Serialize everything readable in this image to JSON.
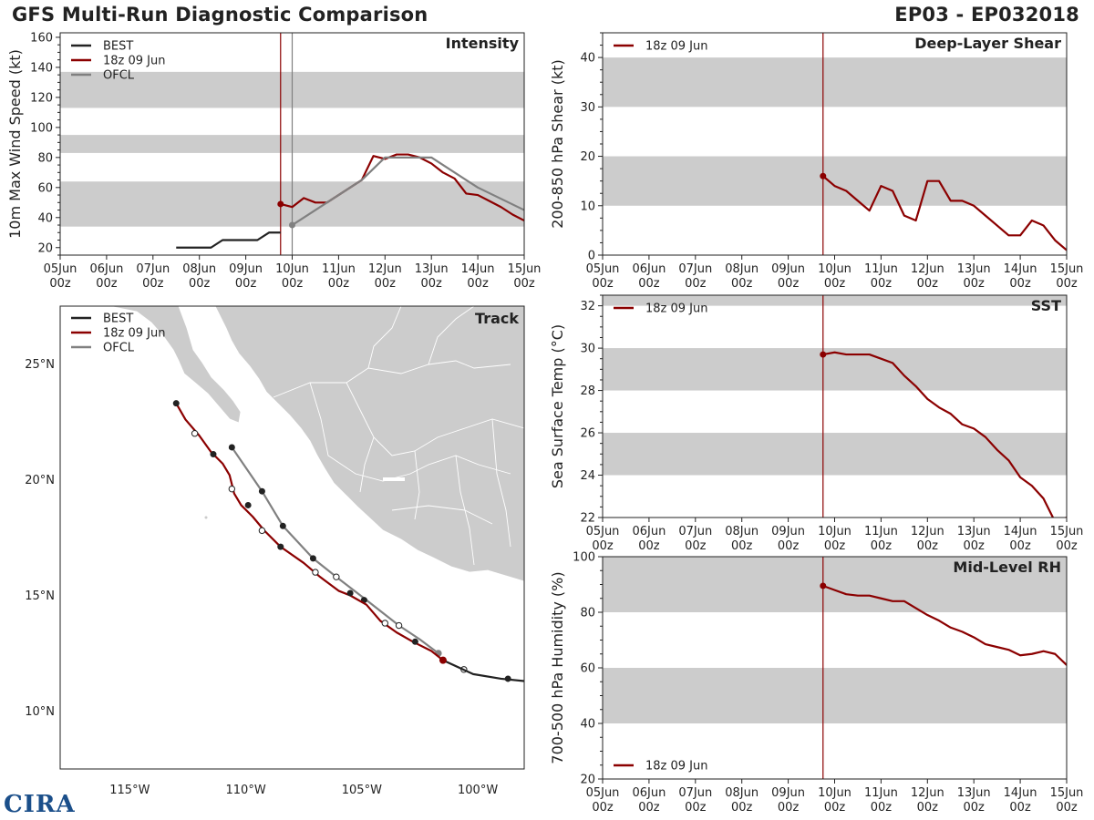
{
  "header": {
    "title": "GFS Multi-Run Diagnostic Comparison",
    "storm_id": "EP03 - EP032018"
  },
  "logo": {
    "text": "CIRA"
  },
  "colors": {
    "best": "#222222",
    "run": "#8b0000",
    "ofcl": "#808080",
    "band": "#cccccc",
    "land": "#cccccc",
    "vline_ofcl": "#7f7f7f"
  },
  "x_ticks": {
    "values": [
      0,
      1,
      2,
      3,
      4,
      5,
      6,
      7,
      8,
      9,
      10
    ],
    "day_labels": [
      "05Jun",
      "06Jun",
      "07Jun",
      "08Jun",
      "09Jun",
      "10Jun",
      "11Jun",
      "12Jun",
      "13Jun",
      "14Jun",
      "15Jun"
    ],
    "hour_label": "00z"
  },
  "chart_data": [
    {
      "id": "intensity",
      "type": "line",
      "title": "Intensity",
      "ylabel": "10m Max Wind Speed (kt)",
      "xlim": [
        0,
        10
      ],
      "ylim": [
        15,
        163
      ],
      "yticks": [
        20,
        40,
        60,
        80,
        100,
        120,
        140,
        160
      ],
      "bands": [
        [
          34,
          64
        ],
        [
          83,
          95
        ],
        [
          113,
          137
        ]
      ],
      "vlines": [
        {
          "x": 4.75,
          "color": "run"
        },
        {
          "x": 5.0,
          "color": "vline_ofcl"
        }
      ],
      "legend": [
        "BEST",
        "18z 09 Jun",
        "OFCL"
      ],
      "series": [
        {
          "name": "BEST",
          "color": "best",
          "x": [
            2.5,
            2.75,
            3.0,
            3.25,
            3.5,
            3.75,
            4.0,
            4.25,
            4.5,
            4.75
          ],
          "y": [
            20,
            20,
            20,
            20,
            25,
            25,
            25,
            25,
            30,
            30
          ]
        },
        {
          "name": "18z 09 Jun",
          "color": "run",
          "marker_first": true,
          "x": [
            4.75,
            5.0,
            5.25,
            5.5,
            5.75,
            6.0,
            6.25,
            6.5,
            6.75,
            7.0,
            7.25,
            7.5,
            7.75,
            8.0,
            8.25,
            8.5,
            8.75,
            9.0,
            9.25,
            9.5,
            9.75,
            10.0
          ],
          "y": [
            49,
            47,
            53,
            50,
            50,
            55,
            60,
            65,
            81,
            79,
            82,
            82,
            80,
            76,
            70,
            66,
            56,
            55,
            51,
            47,
            42,
            38
          ]
        },
        {
          "name": "OFCL",
          "color": "ofcl",
          "marker_first": true,
          "x": [
            5.0,
            5.5,
            6.0,
            6.5,
            7.0,
            7.5,
            8.0,
            9.0,
            10.0
          ],
          "y": [
            35,
            45,
            55,
            65,
            80,
            80,
            80,
            60,
            45
          ]
        }
      ]
    },
    {
      "id": "shear",
      "type": "line",
      "title": "Deep-Layer Shear",
      "ylabel": "200-850 hPa Shear (kt)",
      "xlim": [
        0,
        10
      ],
      "ylim": [
        0,
        45
      ],
      "yticks": [
        0,
        10,
        20,
        30,
        40
      ],
      "bands": [
        [
          10,
          20
        ],
        [
          30,
          40
        ]
      ],
      "vlines": [
        {
          "x": 4.75,
          "color": "run"
        }
      ],
      "legend": [
        "18z 09 Jun"
      ],
      "series": [
        {
          "name": "18z 09 Jun",
          "color": "run",
          "marker_first": true,
          "x": [
            4.75,
            5.0,
            5.25,
            5.5,
            5.75,
            6.0,
            6.25,
            6.5,
            6.75,
            7.0,
            7.25,
            7.5,
            7.75,
            8.0,
            8.25,
            8.5,
            8.75,
            9.0,
            9.25,
            9.5,
            9.75,
            10.0
          ],
          "y": [
            16,
            14,
            13,
            11,
            9,
            14,
            13,
            8,
            7,
            15,
            15,
            11,
            11,
            10,
            8,
            6,
            4,
            4,
            7,
            6,
            3,
            1
          ]
        }
      ]
    },
    {
      "id": "sst",
      "type": "line",
      "title": "SST",
      "ylabel": "Sea Surface Temp (°C)",
      "xlim": [
        0,
        10
      ],
      "ylim": [
        22,
        32.5
      ],
      "yticks": [
        22,
        24,
        26,
        28,
        30,
        32
      ],
      "bands": [
        [
          24,
          26
        ],
        [
          28,
          30
        ],
        [
          32,
          32.5
        ]
      ],
      "vlines": [
        {
          "x": 4.75,
          "color": "run"
        }
      ],
      "legend": [
        "18z 09 Jun"
      ],
      "series": [
        {
          "name": "18z 09 Jun",
          "color": "run",
          "marker_first": true,
          "x": [
            4.75,
            5.0,
            5.25,
            5.5,
            5.75,
            6.0,
            6.25,
            6.5,
            6.75,
            7.0,
            7.25,
            7.5,
            7.75,
            8.0,
            8.25,
            8.5,
            8.75,
            9.0,
            9.25,
            9.5,
            9.75,
            10.0
          ],
          "y": [
            29.7,
            29.8,
            29.7,
            29.7,
            29.7,
            29.5,
            29.3,
            28.7,
            28.2,
            27.6,
            27.2,
            26.9,
            26.4,
            26.2,
            25.8,
            25.2,
            24.7,
            23.9,
            23.5,
            22.9,
            21.8,
            22.0
          ]
        }
      ]
    },
    {
      "id": "rh",
      "type": "line",
      "title": "Mid-Level RH",
      "ylabel": "700-500 hPa Humidity (%)",
      "xlim": [
        0,
        10
      ],
      "ylim": [
        20,
        100
      ],
      "yticks": [
        20,
        40,
        60,
        80,
        100
      ],
      "bands": [
        [
          40,
          60
        ],
        [
          80,
          100
        ]
      ],
      "vlines": [
        {
          "x": 4.75,
          "color": "run"
        }
      ],
      "legend": [
        "18z 09 Jun"
      ],
      "legend_position": "bottom-left",
      "series": [
        {
          "name": "18z 09 Jun",
          "color": "run",
          "marker_first": true,
          "x": [
            4.75,
            5.0,
            5.25,
            5.5,
            5.75,
            6.0,
            6.25,
            6.5,
            6.75,
            7.0,
            7.25,
            7.5,
            7.75,
            8.0,
            8.25,
            8.5,
            8.75,
            9.0,
            9.25,
            9.5,
            9.75,
            10.0
          ],
          "y": [
            89.5,
            88,
            86.5,
            86,
            86,
            85,
            84,
            84,
            81.5,
            79,
            77,
            74.5,
            73,
            71,
            68.5,
            67.5,
            66.5,
            64.5,
            65,
            66,
            65,
            61
          ]
        }
      ]
    },
    {
      "id": "track",
      "type": "scatter",
      "title": "Track",
      "xlim": [
        -118,
        -98
      ],
      "ylim": [
        7.5,
        27.5
      ],
      "xticks": [
        -115,
        -110,
        -105,
        -100
      ],
      "xtick_labels": [
        "115°W",
        "110°W",
        "105°W",
        "100°W"
      ],
      "yticks": [
        10,
        15,
        20,
        25
      ],
      "ytick_labels": [
        "10°N",
        "15°N",
        "20°N",
        "25°N"
      ],
      "legend": [
        "BEST",
        "18z 09 Jun",
        "OFCL"
      ],
      "series": [
        {
          "name": "BEST",
          "color": "best",
          "lon": [
            -98.0,
            -99.0,
            -100.2,
            -101.5
          ],
          "lat": [
            11.3,
            11.4,
            11.6,
            12.2
          ],
          "dots": [
            [
              -98.7,
              11.4
            ]
          ]
        },
        {
          "name": "18z 09 Jun",
          "color": "run",
          "lon": [
            -101.5,
            -102.0,
            -102.8,
            -103.5,
            -104.2,
            -104.8,
            -105.5,
            -106.0,
            -106.8,
            -107.5,
            -108.5,
            -109.2,
            -109.7,
            -110.2,
            -110.5,
            -110.7,
            -111.0,
            -111.5,
            -112.0,
            -112.6,
            -113.0
          ],
          "lat": [
            12.2,
            12.6,
            13.0,
            13.4,
            13.9,
            14.6,
            15.0,
            15.2,
            15.8,
            16.4,
            17.1,
            17.8,
            18.4,
            18.9,
            19.4,
            20.2,
            20.7,
            21.2,
            21.9,
            22.6,
            23.3
          ],
          "filled": [
            [
              -113.0,
              23.3
            ],
            [
              -111.4,
              21.1
            ],
            [
              -109.9,
              18.9
            ],
            [
              -108.5,
              17.1
            ],
            [
              -105.5,
              15.1
            ],
            [
              -102.7,
              13.0
            ],
            [
              -101.5,
              12.2
            ]
          ],
          "open": [
            [
              -112.2,
              22.0
            ],
            [
              -110.6,
              19.6
            ],
            [
              -109.3,
              17.8
            ],
            [
              -107.0,
              16.0
            ],
            [
              -104.0,
              13.8
            ],
            [
              -100.6,
              11.8
            ]
          ]
        },
        {
          "name": "OFCL",
          "color": "ofcl",
          "lon": [
            -101.7,
            -102.5,
            -103.4,
            -104.8,
            -106.1,
            -107.1,
            -108.4,
            -109.3,
            -110.6
          ],
          "lat": [
            12.5,
            13.1,
            13.7,
            14.8,
            15.8,
            16.6,
            18.0,
            19.5,
            21.4
          ],
          "filled": [
            [
              -110.6,
              21.4
            ],
            [
              -109.3,
              19.5
            ],
            [
              -108.4,
              18.0
            ],
            [
              -107.1,
              16.6
            ],
            [
              -104.9,
              14.8
            ]
          ],
          "open": [
            [
              -106.1,
              15.8
            ],
            [
              -103.4,
              13.7
            ]
          ],
          "gray_dot": [
            -101.7,
            12.5
          ]
        }
      ]
    }
  ]
}
